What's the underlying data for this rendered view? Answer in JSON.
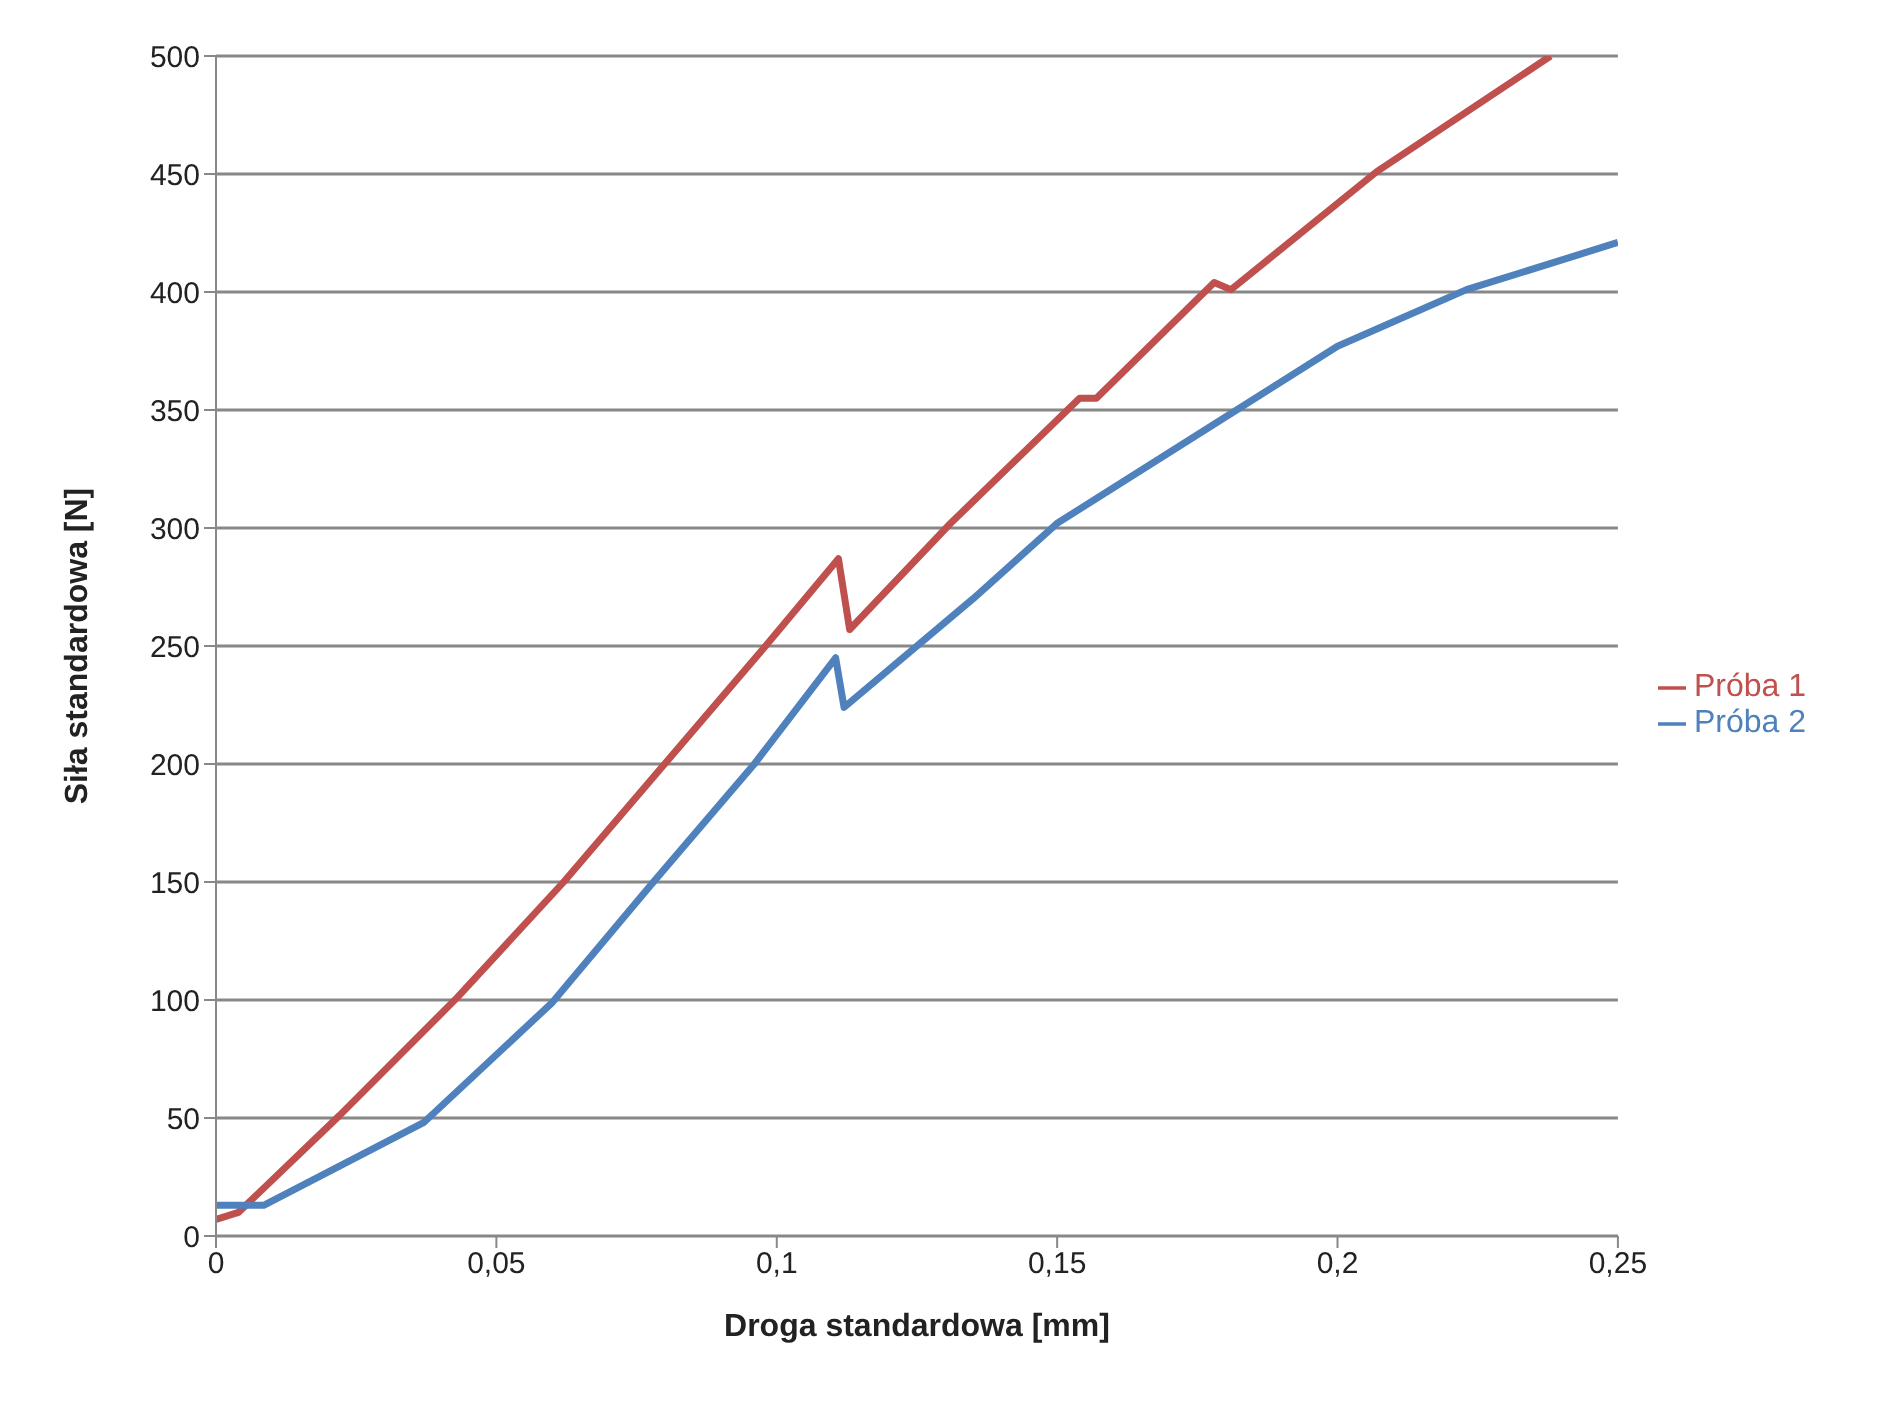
{
  "chart_data": {
    "type": "line",
    "xlabel": "Droga standardowa [mm]",
    "ylabel": "Siła standardowa [N]",
    "xlim": [
      0,
      0.25
    ],
    "xticks": [
      0,
      {
        "value": 0.05,
        "label": "0,05"
      },
      {
        "value": 0.1,
        "label": "0,1"
      },
      {
        "value": 0.15,
        "label": "0,15"
      },
      {
        "value": 0.2,
        "label": "0,2"
      },
      {
        "value": 0.25,
        "label": "0,25"
      }
    ],
    "ylim": [
      0,
      500
    ],
    "yticks": [
      0,
      50,
      100,
      150,
      200,
      250,
      300,
      350,
      400,
      450,
      500
    ],
    "grid": "y",
    "legend": "right",
    "marker": "none",
    "line_style": "solid",
    "series": [
      {
        "name": "Próba 1",
        "color": "#c0504d",
        "x": [
          0,
          0.004,
          0.022,
          0.043,
          0.062,
          0.08,
          0.098,
          0.111,
          0.113,
          0.131,
          0.154,
          0.157,
          0.178,
          0.181,
          0.207,
          0.238
        ],
        "values": [
          7,
          10,
          51,
          101,
          150,
          200,
          250,
          287,
          257,
          302,
          355,
          355,
          404,
          401,
          451,
          500
        ]
      },
      {
        "name": "Próba 2",
        "color": "#4f81bd",
        "x": [
          0,
          0.0085,
          0.037,
          0.06,
          0.078,
          0.096,
          0.1105,
          0.112,
          0.135,
          0.15,
          0.182,
          0.2,
          0.223,
          0.25
        ],
        "values": [
          13,
          13,
          48,
          99,
          150,
          200,
          245,
          224,
          270,
          302,
          350,
          377,
          401,
          421
        ]
      }
    ]
  }
}
